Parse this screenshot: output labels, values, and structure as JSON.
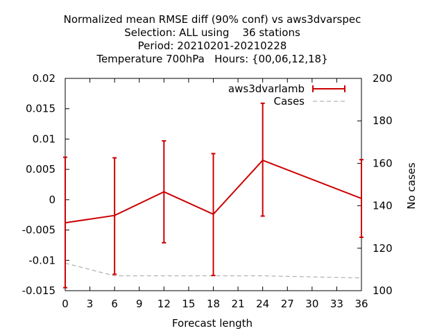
{
  "chart_data": {
    "type": "line",
    "title_lines": [
      "Normalized mean RMSE diff (90% conf) vs aws3dvarspec",
      "Selection: ALL using    36 stations",
      "Period: 20210201-20210228",
      "Temperature 700hPa   Hours: {00,06,12,18}"
    ],
    "xlabel": "Forecast length",
    "ylabel": "",
    "y2label": "No cases",
    "xlim": [
      0,
      36
    ],
    "ylim": [
      -0.015,
      0.02
    ],
    "y2lim": [
      100,
      200
    ],
    "xticks": [
      0,
      3,
      6,
      9,
      12,
      15,
      18,
      21,
      24,
      27,
      30,
      33,
      36
    ],
    "yticks": [
      -0.015,
      -0.01,
      -0.005,
      0,
      0.005,
      0.01,
      0.015,
      0.02
    ],
    "ytick_labels": [
      "-0.015",
      "-0.01",
      "-0.005",
      "0",
      "0.005",
      "0.01",
      "0.015",
      "0.02"
    ],
    "y2ticks": [
      100,
      120,
      140,
      160,
      180,
      200
    ],
    "legend_position": "top-right",
    "series": [
      {
        "name": "aws3dvarlamb",
        "color": "#cc0000",
        "style": "line-errorbars",
        "x": [
          0,
          6,
          12,
          18,
          24,
          36
        ],
        "y": [
          -0.0038,
          -0.0026,
          0.0013,
          -0.0024,
          0.0065,
          0.0002
        ],
        "err_low": [
          -0.0145,
          -0.0123,
          -0.0071,
          -0.0125,
          -0.0027,
          -0.0062
        ],
        "err_high": [
          0.007,
          0.0069,
          0.0097,
          0.0076,
          0.0159,
          0.0066
        ]
      },
      {
        "name": "Cases",
        "color": "#a0a0a0",
        "style": "dashed",
        "axis": "y2",
        "x": [
          0,
          6,
          12,
          18,
          24,
          36
        ],
        "y": [
          113,
          107,
          107,
          107,
          107,
          106
        ]
      }
    ]
  }
}
